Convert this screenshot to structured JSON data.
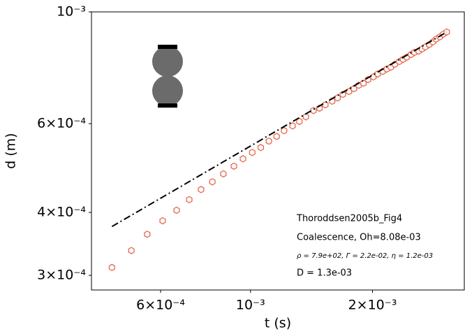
{
  "chart_data": {
    "type": "scatter",
    "xlabel": "t (s)",
    "ylabel": "d (m)",
    "xscale": "log",
    "yscale": "log",
    "xlim": [
      0.000405,
      0.00337
    ],
    "ylim": [
      0.0002806,
      0.001
    ],
    "xticks": [
      {
        "value": 0.0006,
        "label": "6×10⁻⁴"
      },
      {
        "value": 0.001,
        "label": "10⁻³"
      },
      {
        "value": 0.002,
        "label": "2×10⁻³"
      }
    ],
    "yticks": [
      {
        "value": 0.0003,
        "label": "3×10⁻⁴"
      },
      {
        "value": 0.0004,
        "label": "4×10⁻⁴"
      },
      {
        "value": 0.0006,
        "label": "6×10⁻⁴"
      },
      {
        "value": 0.001,
        "label": "10⁻³"
      }
    ],
    "annotations": [
      "Thoroddsen2005b_Fig4",
      "Coalescence, Oh=8.08e-03",
      "ρ = 7.9e+02, Γ = 2.2e-02, η = 1.2e-03",
      "D = 1.3e-03"
    ],
    "series": [
      {
        "type": "scatter",
        "color": "#e5694f",
        "x": [
          0.000455,
          0.000508,
          0.000556,
          0.000607,
          0.000657,
          0.000706,
          0.000755,
          0.000805,
          0.000857,
          0.00091,
          0.000958,
          0.00101,
          0.00106,
          0.00111,
          0.00116,
          0.00121,
          0.00127,
          0.00132,
          0.00137,
          0.00143,
          0.00148,
          0.00153,
          0.00159,
          0.00164,
          0.00169,
          0.00175,
          0.0018,
          0.00185,
          0.0019,
          0.00195,
          0.00201,
          0.00206,
          0.00212,
          0.00217,
          0.00222,
          0.00227,
          0.00233,
          0.00238,
          0.00243,
          0.00249,
          0.00254,
          0.0026,
          0.00265,
          0.0027,
          0.00276,
          0.00282,
          0.00287,
          0.00293,
          0.00299,
          0.00305
        ],
        "values": [
          0.000311,
          0.000336,
          0.000362,
          0.000385,
          0.000404,
          0.000424,
          0.000444,
          0.00046,
          0.000477,
          0.000494,
          0.000511,
          0.000526,
          0.000538,
          0.000554,
          0.000566,
          0.000581,
          0.000594,
          0.000606,
          0.000619,
          0.000637,
          0.000644,
          0.000654,
          0.000665,
          0.000675,
          0.000686,
          0.000695,
          0.000704,
          0.000715,
          0.000722,
          0.000734,
          0.000743,
          0.000753,
          0.000762,
          0.00077,
          0.000777,
          0.000787,
          0.000797,
          0.000805,
          0.000813,
          0.000823,
          0.000831,
          0.000836,
          0.000844,
          0.000852,
          0.000861,
          0.000872,
          0.000883,
          0.000892,
          0.000903,
          0.000912
        ]
      },
      {
        "type": "line",
        "color": "#000000",
        "linestyle": "dashdot",
        "x": [
          0.000455,
          0.00305
        ],
        "values": [
          0.000375,
          0.000912
        ]
      }
    ]
  }
}
